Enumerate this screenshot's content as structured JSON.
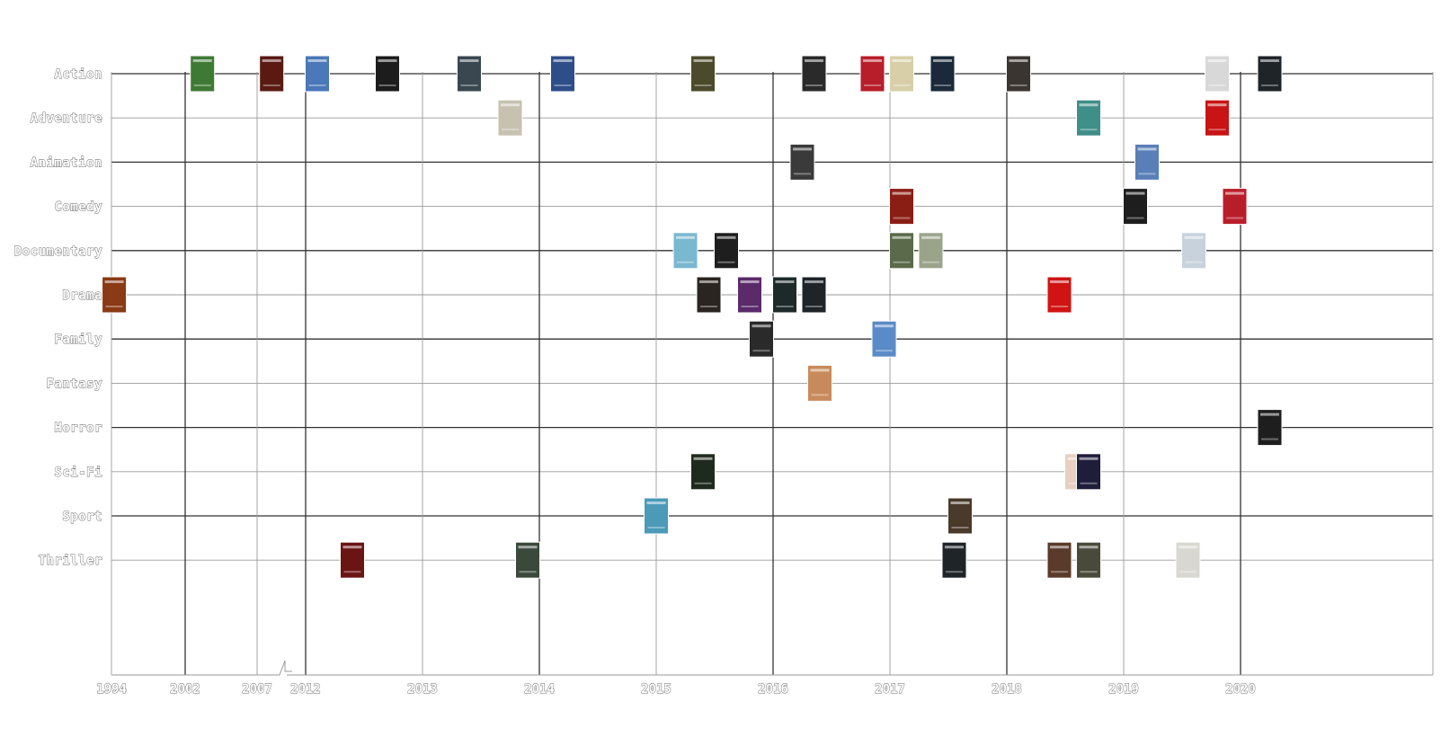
{
  "chart_data": {
    "type": "scatter",
    "title": "",
    "xlabel": "",
    "ylabel": "",
    "x_axis": {
      "ticks": [
        "1994",
        "2002",
        "2007",
        "2012",
        "2013",
        "2014",
        "2015",
        "2016",
        "2017",
        "2018",
        "2019",
        "2020"
      ],
      "broken_between": [
        "2007",
        "2012"
      ]
    },
    "categories": [
      "Action",
      "Adventure",
      "Animation",
      "Comedy",
      "Documentary",
      "Drama",
      "Family",
      "Fantasy",
      "Horror",
      "Sci-Fi",
      "Sport",
      "Thriller"
    ],
    "grid": true,
    "marker": "movie-poster-thumbnail",
    "points": [
      {
        "genre": "Action",
        "x": 2003.2,
        "poster_color": "#3f7a35"
      },
      {
        "genre": "Action",
        "x": 2008.5,
        "poster_color": "#5a1a12"
      },
      {
        "genre": "Action",
        "x": 2012.1,
        "poster_color": "#4a78b8"
      },
      {
        "genre": "Action",
        "x": 2012.7,
        "poster_color": "#1c1c1c"
      },
      {
        "genre": "Action",
        "x": 2013.4,
        "poster_color": "#3a4750"
      },
      {
        "genre": "Action",
        "x": 2014.2,
        "poster_color": "#2e4e8a"
      },
      {
        "genre": "Action",
        "x": 2015.4,
        "poster_color": "#4b4a2a"
      },
      {
        "genre": "Action",
        "x": 2016.35,
        "poster_color": "#2a2a2a"
      },
      {
        "genre": "Action",
        "x": 2016.85,
        "poster_color": "#b81e2a"
      },
      {
        "genre": "Action",
        "x": 2017.1,
        "poster_color": "#d8cfa8"
      },
      {
        "genre": "Action",
        "x": 2017.45,
        "poster_color": "#1a2a3a"
      },
      {
        "genre": "Action",
        "x": 2018.1,
        "poster_color": "#3a3530"
      },
      {
        "genre": "Action",
        "x": 2019.8,
        "poster_color": "#d8d8d8"
      },
      {
        "genre": "Action",
        "x": 2020.25,
        "poster_color": "#1e2428"
      },
      {
        "genre": "Adventure",
        "x": 2013.75,
        "poster_color": "#c7c2b0"
      },
      {
        "genre": "Adventure",
        "x": 2018.7,
        "poster_color": "#3f8f88"
      },
      {
        "genre": "Adventure",
        "x": 2019.8,
        "poster_color": "#c81414"
      },
      {
        "genre": "Animation",
        "x": 2016.25,
        "poster_color": "#3a3a3a"
      },
      {
        "genre": "Animation",
        "x": 2019.2,
        "poster_color": "#5a7fb8"
      },
      {
        "genre": "Comedy",
        "x": 2017.1,
        "poster_color": "#8a1e14"
      },
      {
        "genre": "Comedy",
        "x": 2019.1,
        "poster_color": "#1e1e1e"
      },
      {
        "genre": "Comedy",
        "x": 2019.95,
        "poster_color": "#b81e2a"
      },
      {
        "genre": "Documentary",
        "x": 2015.25,
        "poster_color": "#7ab8d0"
      },
      {
        "genre": "Documentary",
        "x": 2015.6,
        "poster_color": "#1e1e1e"
      },
      {
        "genre": "Documentary",
        "x": 2017.1,
        "poster_color": "#5a6a4a"
      },
      {
        "genre": "Documentary",
        "x": 2017.35,
        "poster_color": "#9aa48a"
      },
      {
        "genre": "Documentary",
        "x": 2019.6,
        "poster_color": "#c8d2dc"
      },
      {
        "genre": "Drama",
        "x": 1994.3,
        "poster_color": "#8a3a14"
      },
      {
        "genre": "Drama",
        "x": 2015.45,
        "poster_color": "#2a2520"
      },
      {
        "genre": "Drama",
        "x": 2015.8,
        "poster_color": "#5a2a6a"
      },
      {
        "genre": "Drama",
        "x": 2016.1,
        "poster_color": "#1e2a2a"
      },
      {
        "genre": "Drama",
        "x": 2016.35,
        "poster_color": "#1e2428"
      },
      {
        "genre": "Drama",
        "x": 2018.45,
        "poster_color": "#d01414"
      },
      {
        "genre": "Family",
        "x": 2015.9,
        "poster_color": "#2a2a2a"
      },
      {
        "genre": "Family",
        "x": 2016.95,
        "poster_color": "#5a8ac8"
      },
      {
        "genre": "Fantasy",
        "x": 2016.4,
        "poster_color": "#c88a5a"
      },
      {
        "genre": "Horror",
        "x": 2020.25,
        "poster_color": "#1e1e1e"
      },
      {
        "genre": "Sci-Fi",
        "x": 2015.4,
        "poster_color": "#1e2a1e"
      },
      {
        "genre": "Sci-Fi",
        "x": 2018.6,
        "poster_color": "#e8d0c0"
      },
      {
        "genre": "Sci-Fi",
        "x": 2018.7,
        "poster_color": "#1e1e3a"
      },
      {
        "genre": "Sport",
        "x": 2015.0,
        "poster_color": "#4a9ab8"
      },
      {
        "genre": "Sport",
        "x": 2017.6,
        "poster_color": "#4a3a2a"
      },
      {
        "genre": "Thriller",
        "x": 2012.4,
        "poster_color": "#6a1414"
      },
      {
        "genre": "Thriller",
        "x": 2013.9,
        "poster_color": "#3a4a3a"
      },
      {
        "genre": "Thriller",
        "x": 2017.55,
        "poster_color": "#1e2428"
      },
      {
        "genre": "Thriller",
        "x": 2018.45,
        "poster_color": "#5a3a2a"
      },
      {
        "genre": "Thriller",
        "x": 2018.7,
        "poster_color": "#4a4a3a"
      },
      {
        "genre": "Thriller",
        "x": 2019.55,
        "poster_color": "#d8d8d0"
      }
    ]
  },
  "colors": {
    "grid_major": "#333333",
    "grid_minor": "#9a9a9a",
    "poster_border": "#ffffff"
  }
}
